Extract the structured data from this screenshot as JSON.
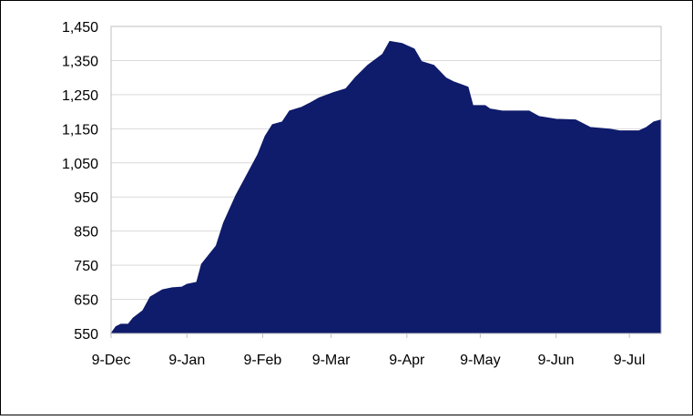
{
  "chart_data": {
    "type": "area",
    "x": [
      0,
      2,
      4,
      7,
      9,
      13,
      16,
      21,
      25,
      29,
      31,
      35,
      37,
      43,
      46,
      51,
      54,
      57,
      60,
      63,
      66,
      70,
      73,
      78,
      81,
      85,
      91,
      96,
      100,
      105,
      111,
      114,
      119,
      124,
      127,
      132,
      137,
      140,
      146,
      148,
      153,
      155,
      160,
      171,
      175,
      182,
      190,
      196,
      204,
      208,
      216,
      219,
      222,
      225
    ],
    "values": [
      550,
      570,
      577,
      577,
      595,
      617,
      657,
      678,
      684,
      686,
      694,
      700,
      753,
      807,
      874,
      954,
      994,
      1034,
      1074,
      1128,
      1162,
      1170,
      1202,
      1213,
      1224,
      1240,
      1256,
      1267,
      1301,
      1336,
      1368,
      1406,
      1400,
      1384,
      1347,
      1336,
      1299,
      1288,
      1272,
      1218,
      1218,
      1208,
      1202,
      1202,
      1186,
      1178,
      1176,
      1154,
      1149,
      1144,
      1144,
      1154,
      1170,
      1176
    ],
    "color": "#0f1b6b",
    "xlim": [
      0,
      225
    ],
    "xticks": [
      {
        "value": 0,
        "label": "9-Dec"
      },
      {
        "value": 31,
        "label": "9-Jan"
      },
      {
        "value": 62,
        "label": "9-Feb"
      },
      {
        "value": 90,
        "label": "9-Mar"
      },
      {
        "value": 121,
        "label": "9-Apr"
      },
      {
        "value": 151,
        "label": "9-May"
      },
      {
        "value": 182,
        "label": "9-Jun"
      },
      {
        "value": 212,
        "label": "9-Jul"
      }
    ],
    "ylim": [
      550,
      1450
    ],
    "yticks": [
      {
        "value": 550,
        "label": "550"
      },
      {
        "value": 650,
        "label": "650"
      },
      {
        "value": 750,
        "label": "750"
      },
      {
        "value": 850,
        "label": "850"
      },
      {
        "value": 950,
        "label": "950"
      },
      {
        "value": 1050,
        "label": "1,050"
      },
      {
        "value": 1150,
        "label": "1,150"
      },
      {
        "value": 1250,
        "label": "1,250"
      },
      {
        "value": 1350,
        "label": "1,350"
      },
      {
        "value": 1450,
        "label": "1,450"
      }
    ],
    "grid": true
  }
}
